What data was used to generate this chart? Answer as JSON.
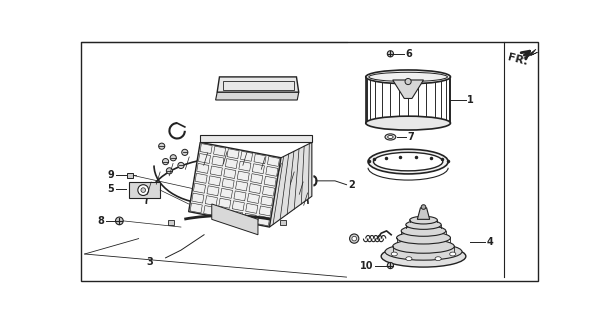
{
  "background_color": "#ffffff",
  "line_color": "#222222",
  "fig_width": 6.04,
  "fig_height": 3.2,
  "dpi": 100,
  "fr_text": "FR.",
  "fr_fontsize": 8
}
